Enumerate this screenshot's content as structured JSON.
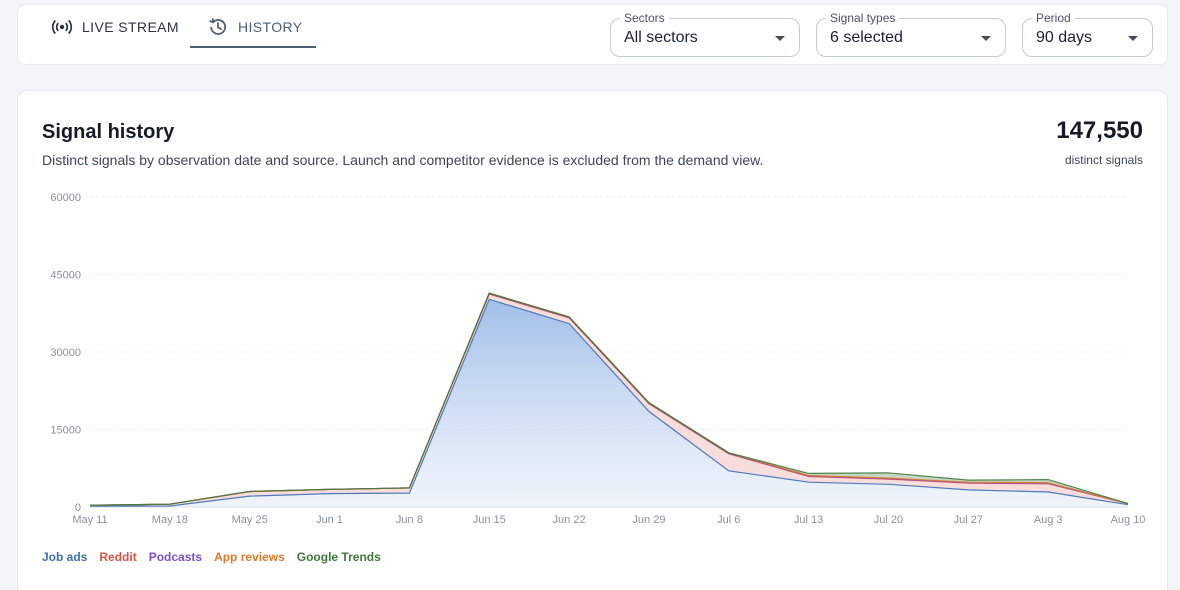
{
  "tabs": [
    {
      "label": "LIVE STREAM",
      "icon": "broadcast-icon"
    },
    {
      "label": "HISTORY",
      "icon": "history-icon"
    }
  ],
  "filters": {
    "sectors": {
      "label": "Sectors",
      "value": "All sectors"
    },
    "signal_types": {
      "label": "Signal types",
      "value": "6 selected"
    },
    "period": {
      "label": "Period",
      "value": "90 days"
    }
  },
  "card": {
    "title": "Signal history",
    "subtitle": "Distinct signals by observation date and source. Launch and competitor evidence is excluded from the demand view.",
    "total": "147,550",
    "total_label": "distinct signals"
  },
  "colors": {
    "job_ads": "#3d6fb6",
    "reddit": "#d8534a",
    "podcasts": "#7c4fd0",
    "app_reviews": "#e07a2a",
    "google_trends": "#3e7a3a",
    "active_tab": "#4d6072"
  },
  "chart_data": {
    "type": "area",
    "stacked": true,
    "x": [
      "May 11",
      "May 18",
      "May 25",
      "Jun 1",
      "Jun 8",
      "Jun 15",
      "Jun 22",
      "Jun 29",
      "Jul 6",
      "Jul 13",
      "Jul 20",
      "Jul 27",
      "Aug 3",
      "Aug 10"
    ],
    "yticks": [
      0,
      15000,
      30000,
      45000,
      60000
    ],
    "ylim": [
      0,
      60000
    ],
    "grid": true,
    "legend_position": "bottom-left",
    "series": [
      {
        "name": "Job ads",
        "color": "#3d6fb6",
        "values": [
          150,
          200,
          2100,
          2600,
          2700,
          40200,
          35500,
          18500,
          7000,
          4800,
          4400,
          3300,
          2900,
          450
        ]
      },
      {
        "name": "Reddit",
        "color": "#d8534a",
        "values": [
          200,
          350,
          900,
          800,
          1000,
          1000,
          1100,
          1500,
          3300,
          1100,
          1000,
          1300,
          1600,
          200
        ]
      },
      {
        "name": "Podcasts",
        "color": "#7c4fd0",
        "values": [
          0,
          0,
          0,
          0,
          0,
          100,
          100,
          100,
          100,
          100,
          100,
          100,
          100,
          0
        ]
      },
      {
        "name": "App reviews",
        "color": "#e07a2a",
        "values": [
          0,
          0,
          0,
          0,
          0,
          100,
          100,
          100,
          100,
          100,
          100,
          100,
          100,
          0
        ]
      },
      {
        "name": "Google Trends",
        "color": "#3e7a3a",
        "values": [
          0,
          0,
          0,
          0,
          0,
          0,
          0,
          0,
          0,
          400,
          1000,
          400,
          600,
          0
        ]
      }
    ]
  }
}
